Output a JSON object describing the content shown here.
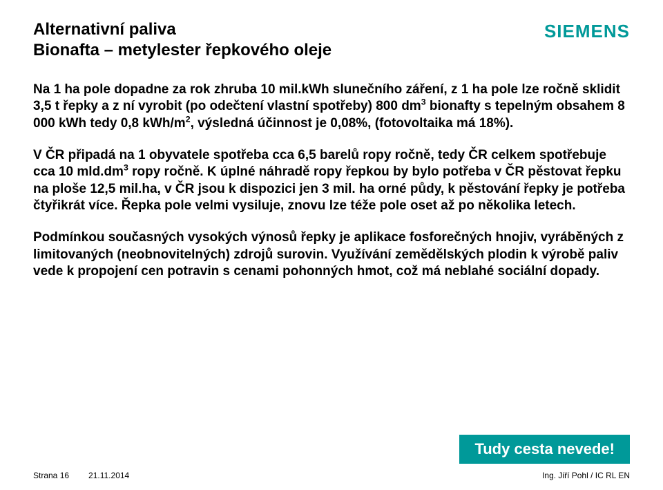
{
  "logo": "SIEMENS",
  "title": {
    "line1": "Alternativní paliva",
    "line2": "Bionafta – metylester řepkového oleje"
  },
  "paragraphs": {
    "p1a": "Na 1 ha pole dopadne za rok zhruba 10 mil.kWh slunečního záření, z 1 ha pole lze ročně sklidit 3,5 t řepky a z ní vyrobit (po odečtení vlastní spotřeby) 800 dm",
    "p1b": " bionafty s tepelným obsahem 8 000 kWh tedy 0,8 kWh/m",
    "p1c": ", výsledná účinnost je 0,08%, (fotovoltaika má 18%).",
    "p2a": "V ČR připadá na 1 obyvatele spotřeba  cca 6,5 barelů ropy ročně, tedy ČR celkem spotřebuje cca 10 mld.dm",
    "p2b": " ropy ročně. K úplné náhradě ropy řepkou by bylo potřeba v ČR pěstovat řepku na ploše 12,5 mil.ha, v ČR jsou k dispozici jen 3 mil. ha orné půdy, k pěstování řepky je potřeba čtyřikrát více. Řepka pole velmi vysiluje, znovu lze téže pole oset až po několika letech.",
    "p3": "Podmínkou současných vysokých výnosů řepky je aplikace fosforečných hnojiv, vyráběných z limitovaných (neobnovitelných) zdrojů surovin. Využívání zemědělských plodin k výrobě paliv vede k propojení cen potravin s cenami pohonných hmot, což má neblahé sociální dopady."
  },
  "sup3": "3",
  "sup2": "2",
  "callout": "Tudy cesta nevede!",
  "footer": {
    "page": "Strana 16",
    "date": "21.11.2014",
    "author": "Ing. Jiří Pohl / IC RL EN"
  },
  "colors": {
    "teal": "#009999",
    "text": "#000000",
    "bg": "#ffffff"
  }
}
